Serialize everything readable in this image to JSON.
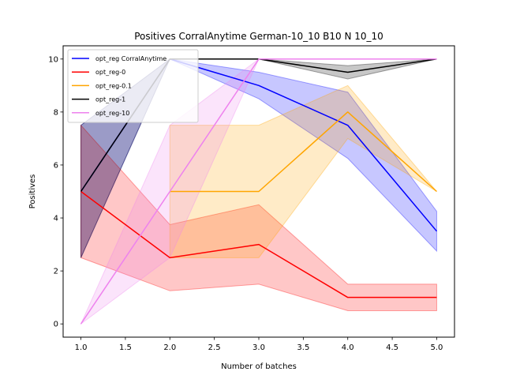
{
  "chart_data": {
    "type": "line",
    "title": "Positives CorralAnytime German-10_10 B10 N 10_10",
    "xlabel": "Number of batches",
    "ylabel": "Positives",
    "xlim": [
      0.8,
      5.2
    ],
    "ylim": [
      -0.5,
      10.5
    ],
    "xticks": [
      1.0,
      1.5,
      2.0,
      2.5,
      3.0,
      3.5,
      4.0,
      4.5,
      5.0
    ],
    "xtick_labels": [
      "1.0",
      "1.5",
      "2.0",
      "2.5",
      "3.0",
      "3.5",
      "4.0",
      "4.5",
      "5.0"
    ],
    "yticks": [
      0,
      2,
      4,
      6,
      8,
      10
    ],
    "ytick_labels": [
      "0",
      "2",
      "4",
      "6",
      "8",
      "10"
    ],
    "legend_position": "top-left",
    "series": [
      {
        "name": "opt_reg CorralAnytime",
        "color": "#0000ff",
        "x": [
          1,
          2,
          3,
          4,
          5
        ],
        "y": [
          5,
          10,
          9,
          7.5,
          3.5
        ],
        "lower": [
          2.5,
          10,
          8.5,
          6.25,
          2.75
        ],
        "upper": [
          7.5,
          10,
          9.5,
          8.75,
          4.25
        ]
      },
      {
        "name": "opt_reg-0",
        "color": "#ff0000",
        "x": [
          1,
          2,
          3,
          4,
          5
        ],
        "y": [
          5,
          2.5,
          3,
          1,
          1
        ],
        "lower": [
          2.5,
          1.25,
          1.5,
          0.5,
          0.5
        ],
        "upper": [
          7.5,
          3.75,
          4.5,
          1.5,
          1.5
        ]
      },
      {
        "name": "opt_reg-0.1",
        "color": "#ffa500",
        "x": [
          2,
          3,
          4,
          5
        ],
        "y": [
          5,
          5,
          8,
          5
        ],
        "lower": [
          2.5,
          2.5,
          7,
          5
        ],
        "upper": [
          7.5,
          7.5,
          9,
          5
        ]
      },
      {
        "name": "opt_reg-1",
        "color": "#000000",
        "x": [
          1,
          2,
          3,
          4,
          5
        ],
        "y": [
          5,
          10,
          10,
          9.5,
          10
        ],
        "lower": [
          2.5,
          10,
          10,
          9.25,
          10
        ],
        "upper": [
          7.5,
          10,
          10,
          9.75,
          10
        ]
      },
      {
        "name": "opt_reg-10",
        "color": "#ee82ee",
        "x": [
          1,
          2,
          3,
          4,
          5
        ],
        "y": [
          0,
          5,
          10,
          10,
          10
        ],
        "lower": [
          0,
          2.5,
          10,
          10,
          10
        ],
        "upper": [
          0,
          7.5,
          10,
          10,
          10
        ]
      }
    ]
  }
}
